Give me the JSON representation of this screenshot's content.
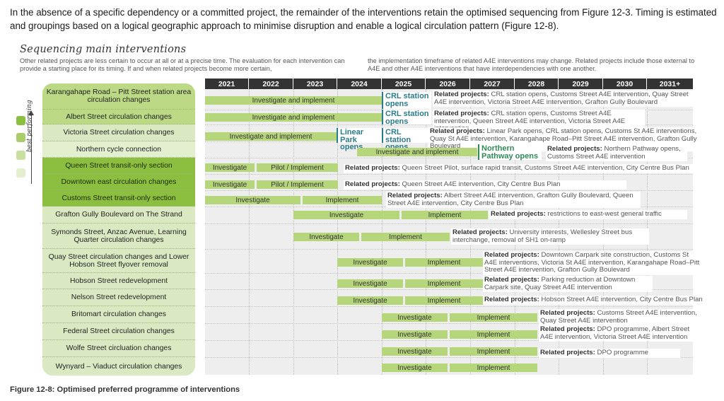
{
  "intro": "In the absence of a specific dependency or a committed project, the remainder of the interventions retain the optimised sequencing from Figure 12-3. Timing is estimated and groupings based on a logical geographic approach to minimise disruption and enable a logical circulation pattern (Figure 12-8).",
  "section_title": "Sequencing main interventions",
  "note_left": "Other related projects are less certain to occur at all or at a precise time.  The evaluation for each intervention can provide a starting place for its timing. If and when related projects become more certain,",
  "note_right": "the implementation timeframe of related A4E interventions may change. Related projects include those external to A4E and other A4E interventions that have interdependencies with one another.",
  "legend_label": "best performing",
  "legend_colors": [
    "#8cbf3f",
    "#a9cd6b",
    "#c7e0a0",
    "#e3efce"
  ],
  "years": [
    "2021",
    "2022",
    "2023",
    "2024",
    "2025",
    "2026",
    "2027",
    "2028",
    "2029",
    "2030",
    "2031+"
  ],
  "rows": [
    {
      "label": "Karangahape Road – Pitt Street station area circulation changes",
      "tone": "g1"
    },
    {
      "label": "Albert Street circulation changes",
      "tone": "g1"
    },
    {
      "label": "Victoria Street circulation changes",
      "tone": "g2"
    },
    {
      "label": "Northern cycle connection",
      "tone": "g4"
    },
    {
      "label": "Queen Street transit-only section",
      "tone": "g3"
    },
    {
      "label": "Downtown east circulation changes",
      "tone": "g3"
    },
    {
      "label": "Customs Street transit-only section",
      "tone": "g3"
    },
    {
      "label": "Grafton Gully Boulevard on The Strand",
      "tone": "g2"
    },
    {
      "label": "Symonds Street, Anzac Avenue, Learning Quarter circulation changes",
      "tone": "g2"
    },
    {
      "label": "Quay Street circulation changes and Lower Hobson Street flyover removal",
      "tone": "g2"
    },
    {
      "label": "Hobson Street redevelopment",
      "tone": "g2"
    },
    {
      "label": "Nelson Street redevelopment",
      "tone": "g2"
    },
    {
      "label": "Britomart circulation changes",
      "tone": "g2"
    },
    {
      "label": "Federal Street circulation changes",
      "tone": "g2"
    },
    {
      "label": "Wolfe Street circluation changes",
      "tone": "g2"
    },
    {
      "label": "Wynyard – Viaduct circulation changes",
      "tone": "g2"
    }
  ],
  "related_label": "Related projects:",
  "related": [
    "CRL station opens, Customs Street A4E intervention, Quay Street A4E intervention, Victoria Street A4E intervention, Grafton Gully Boulevard",
    "CRL station opens, Customs Street A4E intervention, Queen Street A4E intervention, Victoria Street A4E intervention",
    "Linear Park opens, CRL station opens, Customs St A4E interventions, Quay St A4E intervention, Karangahape Road–Pitt Street A4E intervention, Grafton Gully Boulevard",
    "Northern Pathway opens, Customs Street A4E intervention",
    "Queen Street Pilot, surface rapid transit, Customs Street A4E intervention, City Centre Bus Plan",
    "Queen Street A4E intervention, City Centre Bus Plan",
    "Albert Street A4E intervention, Grafton Gully Boulevard, Queen Street A4E intervention, City Centre Bus Plan",
    "restrictions to east-west general traffic",
    "University interests, Wellesley Street bus interchange, removal of SH1 on-ramp",
    "Downtown Carpark site construction, Customs St A4E interventions, Victoria St A4E intervention, Karangahape Road–Pitt Street A4E intervention, Grafton Gully Boulevard",
    "Parking reduction at Downtown Carpark site, Quay Street A4E intervention",
    "Hobson Street A4E intervention, City Centre Bus Plan",
    "Customs Street A4E intervention, Quay Street A4E intervention",
    "DPO programme, Albert Street A4E intervention, Victoria Street A4E intervention",
    "DPO programme"
  ],
  "bars": {
    "investigate_and_implement": "Investigate and implement",
    "investigate": "Investigate",
    "implement": "Implement",
    "pilot_implement": "Pilot / Implement"
  },
  "milestones": {
    "crl": "CRL station opens",
    "linear_park": "Linear Park opens",
    "northern_pathway": "Northern Pathway opens"
  },
  "caption": "Figure 12-8: Optimised preferred programme of interventions"
}
